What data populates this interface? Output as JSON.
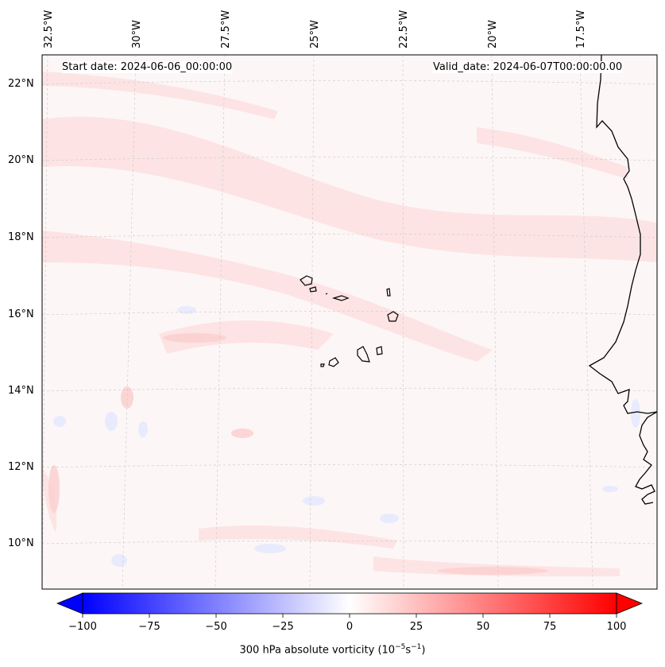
{
  "map": {
    "start_date": "Start date: 2024-06-06_00:00:00",
    "valid_date": "Valid_date: 2024-06-07T00:00:00.00",
    "lon_labels": [
      "32.5°W",
      "30°W",
      "27.5°W",
      "25°W",
      "22.5°W",
      "20°W",
      "17.5°W"
    ],
    "lat_labels": [
      "22°N",
      "20°N",
      "18°N",
      "16°N",
      "14°N",
      "12°N",
      "10°N"
    ],
    "field": "300 hPa absolute vorticity",
    "coastline_color": "#000000",
    "gridline_color": "#bbbbbb"
  },
  "colorbar": {
    "title_main": "300 hPa absolute vorticity (10",
    "title_exp1": "−5",
    "title_mid": "s",
    "title_exp2": "−1",
    "title_end": ")",
    "ticks": [
      "−100",
      "−75",
      "−50",
      "−25",
      "0",
      "25",
      "50",
      "75",
      "100"
    ],
    "min": -100,
    "max": 100,
    "low_color": "#0000ff",
    "high_color": "#ff0000"
  }
}
